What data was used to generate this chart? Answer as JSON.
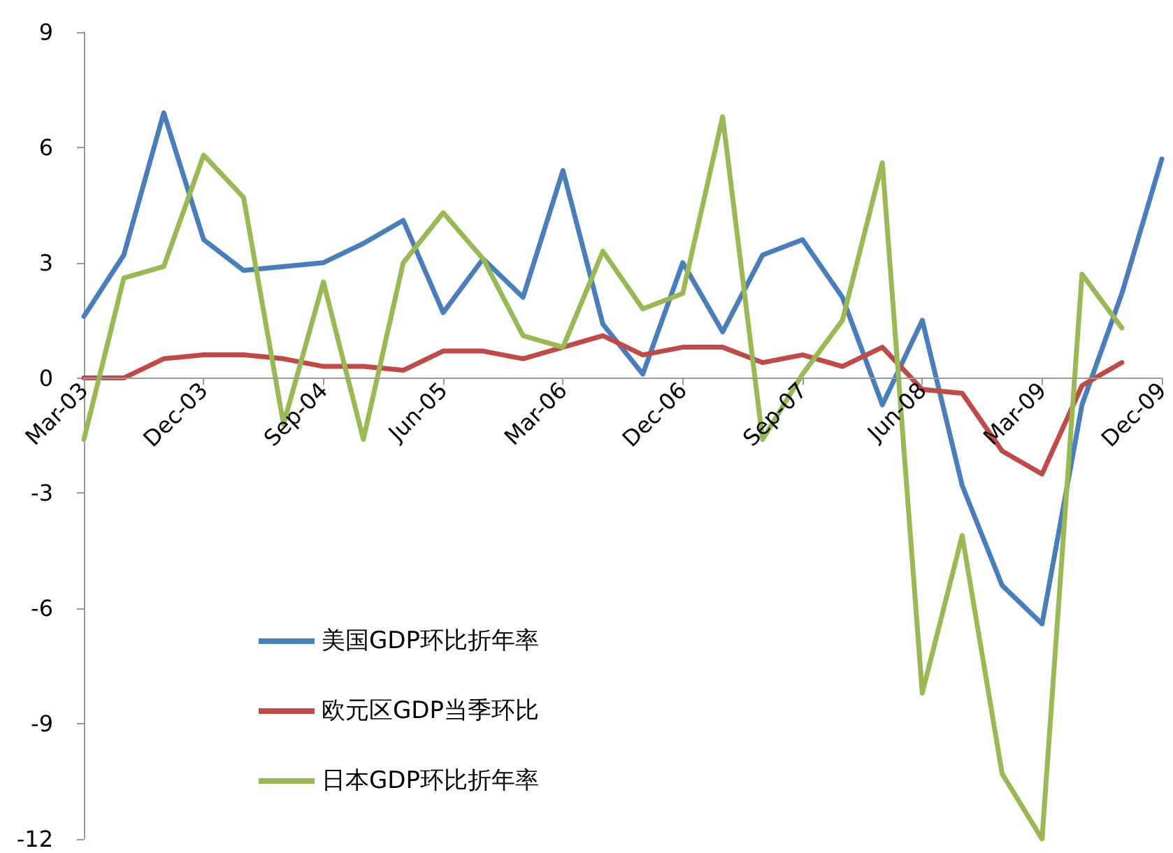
{
  "chart_data": {
    "type": "line",
    "categories": [
      "Mar-03",
      null,
      null,
      "Dec-03",
      null,
      null,
      "Sep-04",
      null,
      null,
      "Jun-05",
      null,
      null,
      "Mar-06",
      null,
      null,
      "Dec-06",
      null,
      null,
      "Sep-07",
      null,
      null,
      "Jun-08",
      null,
      null,
      "Mar-09",
      null,
      null,
      "Dec-09"
    ],
    "series": [
      {
        "name": "美国GDP环比折年率",
        "color": "#4a7ebb",
        "values": [
          1.6,
          3.2,
          6.9,
          3.6,
          2.8,
          2.9,
          3.0,
          3.5,
          4.1,
          1.7,
          3.1,
          2.1,
          5.4,
          1.4,
          0.1,
          3.0,
          1.2,
          3.2,
          3.6,
          2.1,
          -0.7,
          1.5,
          -2.8,
          -5.4,
          -6.4,
          -0.7,
          2.2,
          5.7
        ]
      },
      {
        "name": "欧元区GDP当季环比",
        "color": "#be4b48",
        "values": [
          0,
          0,
          0.5,
          0.6,
          0.6,
          0.5,
          0.3,
          0.3,
          0.2,
          0.7,
          0.7,
          0.5,
          0.8,
          1.1,
          0.6,
          0.8,
          0.8,
          0.4,
          0.6,
          0.3,
          0.8,
          -0.3,
          -0.4,
          -1.9,
          -2.5,
          -0.2,
          0.4,
          null
        ]
      },
      {
        "name": "日本GDP环比折年率",
        "color": "#98b954",
        "values": [
          -1.6,
          2.6,
          2.9,
          5.8,
          4.7,
          -1.2,
          2.5,
          -1.6,
          3.0,
          4.3,
          3.1,
          1.1,
          0.8,
          3.3,
          1.8,
          2.2,
          6.8,
          -1.6,
          0.1,
          1.5,
          5.6,
          -8.2,
          -4.1,
          -10.3,
          -12.0,
          2.7,
          1.3,
          null
        ]
      }
    ],
    "ylim": [
      -12,
      9
    ],
    "yticks": [
      -12,
      -9,
      -6,
      -3,
      0,
      3,
      6,
      9
    ],
    "legend": "bottom left",
    "marker": "none",
    "line_style": "solid"
  }
}
